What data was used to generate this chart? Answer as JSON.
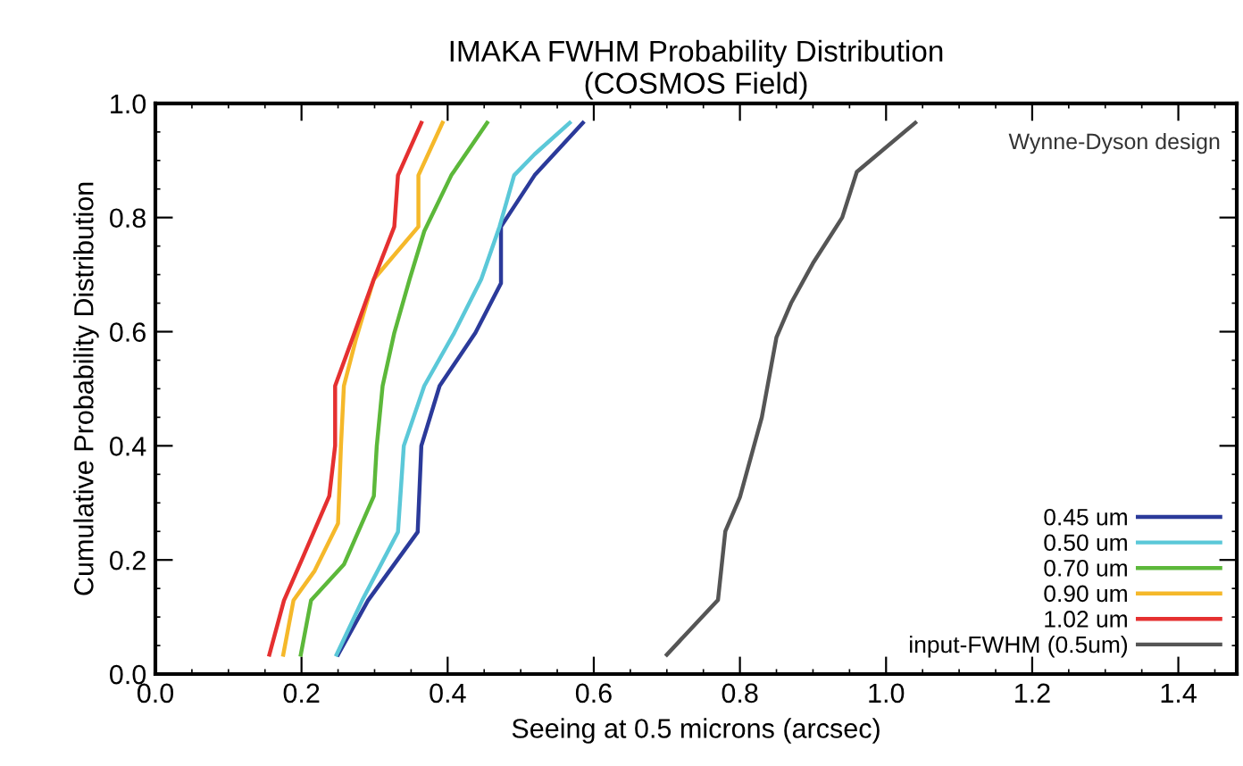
{
  "chart_data": {
    "type": "line",
    "title": "IMAKA FWHM Probability Distribution\n(COSMOS Field)",
    "xlabel": "Seeing at 0.5 microns (arcsec)",
    "ylabel": "Cumulative Probability Distribution",
    "xlim": [
      0,
      1.48
    ],
    "ylim": [
      0,
      1.0
    ],
    "xticks": [
      {
        "value": 0,
        "label": "0.0"
      },
      0.2,
      0.4,
      0.6,
      0.8,
      {
        "value": 1,
        "label": "1.0"
      },
      1.2,
      1.4
    ],
    "yticks": [
      {
        "value": 0,
        "label": "0.0"
      },
      0.2,
      0.4,
      0.6,
      0.8,
      {
        "value": 1,
        "label": "1.0"
      }
    ],
    "grid": false,
    "legend": "bottom right",
    "marker": "none",
    "line_style": "solid",
    "annotations": [
      "Wynne-Dyson design"
    ],
    "series": [
      {
        "name": "0.45 um",
        "color": "#2b3a9a",
        "x": [
          0.25,
          0.291,
          0.359,
          0.364,
          0.389,
          0.438,
          0.473,
          0.473,
          0.519,
          0.585
        ],
        "values": [
          0.034,
          0.129,
          0.249,
          0.4,
          0.505,
          0.598,
          0.685,
          0.784,
          0.874,
          0.966
        ]
      },
      {
        "name": "0.50 um",
        "color": "#5bc8d8",
        "x": [
          0.248,
          0.283,
          0.332,
          0.34,
          0.368,
          0.409,
          0.446,
          0.471,
          0.491,
          0.519,
          0.567
        ],
        "values": [
          0.034,
          0.129,
          0.249,
          0.4,
          0.505,
          0.598,
          0.692,
          0.784,
          0.874,
          0.911,
          0.966
        ]
      },
      {
        "name": "0.70 um",
        "color": "#5cb83a",
        "x": [
          0.199,
          0.213,
          0.258,
          0.299,
          0.303,
          0.311,
          0.327,
          0.348,
          0.368,
          0.405,
          0.454
        ],
        "values": [
          0.034,
          0.129,
          0.192,
          0.312,
          0.4,
          0.505,
          0.598,
          0.692,
          0.776,
          0.874,
          0.966
        ]
      },
      {
        "name": "0.90 um",
        "color": "#f5b82a",
        "x": [
          0.175,
          0.189,
          0.218,
          0.25,
          0.254,
          0.258,
          0.275,
          0.299,
          0.36,
          0.36,
          0.393
        ],
        "values": [
          0.034,
          0.129,
          0.181,
          0.264,
          0.4,
          0.505,
          0.589,
          0.692,
          0.784,
          0.874,
          0.966
        ]
      },
      {
        "name": "1.02 um",
        "color": "#e53030",
        "x": [
          0.156,
          0.176,
          0.201,
          0.238,
          0.246,
          0.246,
          0.27,
          0.299,
          0.327,
          0.332,
          0.364
        ],
        "values": [
          0.034,
          0.129,
          0.202,
          0.312,
          0.4,
          0.505,
          0.589,
          0.692,
          0.784,
          0.874,
          0.966
        ]
      },
      {
        "name": "input-FWHM (0.5um)",
        "color": "#555555",
        "x": [
          0.7,
          0.77,
          0.78,
          0.8,
          0.83,
          0.85,
          0.87,
          0.9,
          0.94,
          0.96,
          1.04
        ],
        "values": [
          0.034,
          0.13,
          0.25,
          0.31,
          0.45,
          0.59,
          0.65,
          0.72,
          0.8,
          0.88,
          0.966
        ]
      }
    ]
  }
}
